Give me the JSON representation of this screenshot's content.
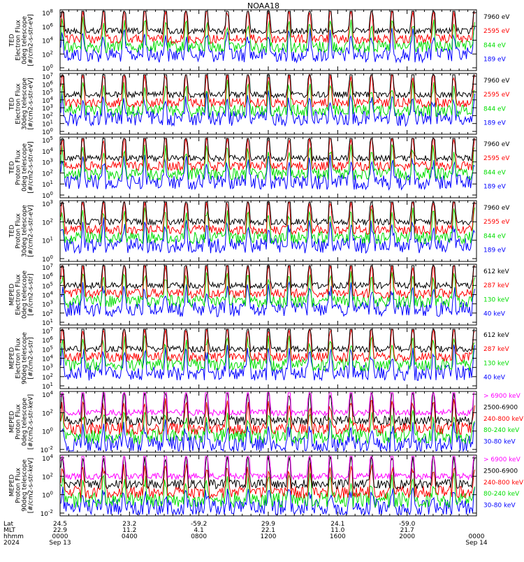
{
  "title": "NOAA18",
  "colors": {
    "blue": "#0000ff",
    "red": "#ff0000",
    "green": "#00dd00",
    "black": "#000000",
    "magenta": "#ff00ff"
  },
  "chart_data": [
    {
      "type": "line",
      "ylabel_lines": [
        "TED",
        "Electron Flux",
        "0deg telescope",
        "[#/cm2-s-str-eV]"
      ],
      "ylim": [
        1,
        100000000
      ],
      "yscale": "log",
      "yticks": [
        {
          "exp": "0"
        },
        {
          "exp": "2"
        },
        {
          "exp": "4"
        },
        {
          "exp": "6"
        },
        {
          "exp": "8"
        }
      ],
      "series": [
        {
          "name": "7960 eV",
          "color": "#000000"
        },
        {
          "name": "2595 eV",
          "color": "#ff0000"
        },
        {
          "name": "844 eV",
          "color": "#00dd00"
        },
        {
          "name": "189 eV",
          "color": "#0000ff"
        }
      ]
    },
    {
      "type": "line",
      "ylabel_lines": [
        "TED",
        "Electron Flux",
        "30deg telescope",
        "[#/cm2-s-str-eV]"
      ],
      "ylim": [
        1,
        10000000
      ],
      "yscale": "log",
      "yticks": [
        {
          "exp": "0"
        },
        {
          "exp": "1"
        },
        {
          "exp": "2"
        },
        {
          "exp": "3"
        },
        {
          "exp": "4"
        },
        {
          "exp": "5"
        },
        {
          "exp": "6"
        },
        {
          "exp": "7"
        }
      ],
      "series": [
        {
          "name": "7960 eV",
          "color": "#000000"
        },
        {
          "name": "2595 eV",
          "color": "#ff0000"
        },
        {
          "name": "844 eV",
          "color": "#00dd00"
        },
        {
          "name": "189 eV",
          "color": "#0000ff"
        }
      ]
    },
    {
      "type": "line",
      "ylabel_lines": [
        "TED",
        "Proton Flux",
        "0deg telescope",
        "[#/cm2-s-str-eV]"
      ],
      "ylim": [
        1,
        100000
      ],
      "yscale": "log",
      "yticks": [
        {
          "exp": "0"
        },
        {
          "exp": "1"
        },
        {
          "exp": "2"
        },
        {
          "exp": "3"
        },
        {
          "exp": "4"
        },
        {
          "exp": "5"
        }
      ],
      "series": [
        {
          "name": "7960 eV",
          "color": "#000000"
        },
        {
          "name": "2595 eV",
          "color": "#ff0000"
        },
        {
          "name": "844 eV",
          "color": "#00dd00"
        },
        {
          "name": "189 eV",
          "color": "#0000ff"
        }
      ]
    },
    {
      "type": "line",
      "ylabel_lines": [
        "TED",
        "Proton Flux",
        "30deg telescope",
        "[#/cm2-s-str-eV]"
      ],
      "ylim": [
        1,
        10000
      ],
      "yscale": "log",
      "yticks": [
        {
          "exp": "0"
        },
        {
          "exp": "1"
        },
        {
          "exp": "2"
        },
        {
          "exp": "3"
        }
      ],
      "series": [
        {
          "name": "7960 eV",
          "color": "#000000"
        },
        {
          "name": "2595 eV",
          "color": "#ff0000"
        },
        {
          "name": "844 eV",
          "color": "#00dd00"
        },
        {
          "name": "189 eV",
          "color": "#0000ff"
        }
      ]
    },
    {
      "type": "line",
      "ylabel_lines": [
        "MEPED",
        "Electron Flux",
        "0deg telescope",
        "[#/cm2-s-str]"
      ],
      "ylim": [
        1,
        10000000
      ],
      "yscale": "log",
      "yticks": [
        {
          "exp": "1"
        },
        {
          "exp": "2"
        },
        {
          "exp": "3"
        },
        {
          "exp": "4"
        },
        {
          "exp": "5"
        },
        {
          "exp": "6"
        },
        {
          "exp": "7"
        }
      ],
      "series": [
        {
          "name": "612 keV",
          "color": "#000000"
        },
        {
          "name": "287 keV",
          "color": "#ff0000"
        },
        {
          "name": "130 keV",
          "color": "#00dd00"
        },
        {
          "name": "40 keV",
          "color": "#0000ff"
        }
      ]
    },
    {
      "type": "line",
      "ylabel_lines": [
        "MEPED",
        "Electron Flux",
        "90deg telescope",
        "[#/cm2-s-str]"
      ],
      "ylim": [
        1,
        10000000
      ],
      "yscale": "log",
      "yticks": [
        {
          "exp": "1"
        },
        {
          "exp": "2"
        },
        {
          "exp": "3"
        },
        {
          "exp": "4"
        },
        {
          "exp": "5"
        },
        {
          "exp": "6"
        },
        {
          "exp": "7"
        }
      ],
      "series": [
        {
          "name": "612 keV",
          "color": "#000000"
        },
        {
          "name": "287 keV",
          "color": "#ff0000"
        },
        {
          "name": "130 keV",
          "color": "#00dd00"
        },
        {
          "name": "40 keV",
          "color": "#0000ff"
        }
      ]
    },
    {
      "type": "line",
      "ylabel_lines": [
        "MEPED",
        "Proton Flux",
        "0deg telescope",
        "[#/cm2-s-str-keV]"
      ],
      "ylim": [
        0.01,
        1000000
      ],
      "yscale": "log",
      "yticks": [
        {
          "exp": "-2"
        },
        {
          "exp": "0"
        },
        {
          "exp": "2"
        },
        {
          "exp": "4"
        }
      ],
      "series": [
        {
          "name": "> 6900 keV",
          "color": "#ff00ff"
        },
        {
          "name": "2500-6900",
          "color": "#000000"
        },
        {
          "name": "240-800 keV",
          "color": "#ff0000"
        },
        {
          "name": "80-240 keV",
          "color": "#00dd00"
        },
        {
          "name": "30-80 keV",
          "color": "#0000ff"
        }
      ]
    },
    {
      "type": "line",
      "ylabel_lines": [
        "MEPED",
        "Proton Flux",
        "90deg telescope",
        "[#/cm2-s-str-keV]"
      ],
      "ylim": [
        0.01,
        1000000
      ],
      "yscale": "log",
      "yticks": [
        {
          "exp": "-2"
        },
        {
          "exp": "0"
        },
        {
          "exp": "2"
        },
        {
          "exp": "4"
        }
      ],
      "series": [
        {
          "name": "> 6900 keV",
          "color": "#ff00ff"
        },
        {
          "name": "2500-6900",
          "color": "#000000"
        },
        {
          "name": "240-800 keV",
          "color": "#ff0000"
        },
        {
          "name": "80-240 keV",
          "color": "#00dd00"
        },
        {
          "name": "30-80 keV",
          "color": "#0000ff"
        }
      ]
    }
  ],
  "x_axis": {
    "row_labels": [
      "Lat",
      "MLT",
      "hhmm",
      "2024"
    ],
    "columns": [
      {
        "lat": "24.5",
        "mlt": "22.9",
        "hhmm": "0000",
        "date": "Sep 13"
      },
      {
        "lat": "23.2",
        "mlt": "11.2",
        "hhmm": "0400",
        "date": ""
      },
      {
        "lat": "-59.2",
        "mlt": "4.1",
        "hhmm": "0800",
        "date": ""
      },
      {
        "lat": "29.9",
        "mlt": "22.1",
        "hhmm": "1200",
        "date": ""
      },
      {
        "lat": "24.1",
        "mlt": "11.0",
        "hhmm": "1600",
        "date": ""
      },
      {
        "lat": "-59.0",
        "mlt": "21.7",
        "hhmm": "2000",
        "date": ""
      },
      {
        "lat": "",
        "mlt": "",
        "hhmm": "0000",
        "date": "Sep 14"
      }
    ]
  }
}
